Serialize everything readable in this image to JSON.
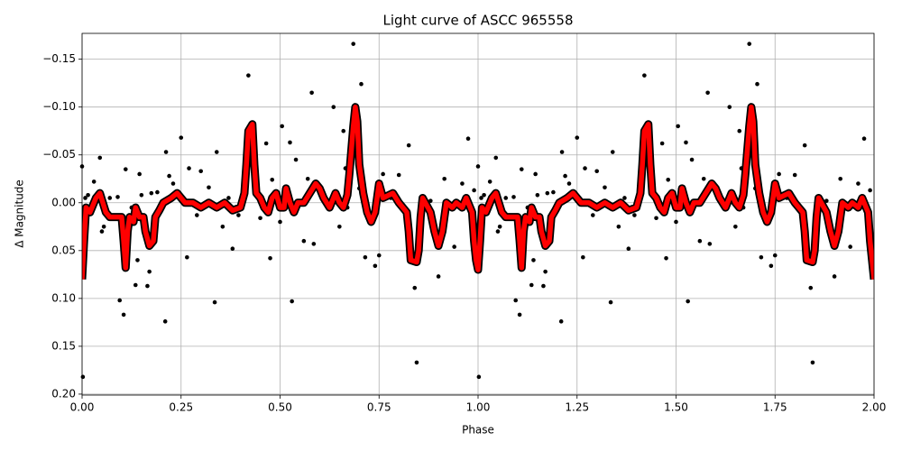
{
  "chart_data": {
    "type": "scatter",
    "title": "Light curve of ASCC 965558",
    "x_label": "Phase",
    "y_label": "Δ Magnitude",
    "xlim": [
      0,
      2
    ],
    "ylim": [
      -0.177,
      0.201
    ],
    "invert_y": true,
    "grid": true,
    "xticks": [
      {
        "value": 0,
        "label": "0.00"
      },
      {
        "value": 0.25,
        "label": "0.25"
      },
      {
        "value": 0.5,
        "label": "0.50"
      },
      {
        "value": 0.75,
        "label": "0.75"
      },
      {
        "value": 1,
        "label": "1.00"
      },
      {
        "value": 1.25,
        "label": "1.25"
      },
      {
        "value": 1.5,
        "label": "1.50"
      },
      {
        "value": 1.75,
        "label": "1.75"
      },
      {
        "value": 2,
        "label": "2.00"
      }
    ],
    "yticks": [
      {
        "value": -0.15,
        "label": "−0.15"
      },
      {
        "value": -0.1,
        "label": "−0.10"
      },
      {
        "value": -0.05,
        "label": "−0.05"
      },
      {
        "value": 0,
        "label": "0.00"
      },
      {
        "value": 0.05,
        "label": "0.05"
      },
      {
        "value": 0.1,
        "label": "0.10"
      },
      {
        "value": 0.15,
        "label": "0.15"
      },
      {
        "value": 0.2,
        "label": "0.20"
      }
    ],
    "series": [
      {
        "kind": "scatter",
        "color": "black",
        "x": [
          0.0,
          0.002,
          0.008,
          0.015,
          0.025,
          0.03,
          0.045,
          0.05,
          0.055,
          0.07,
          0.08,
          0.09,
          0.095,
          0.105,
          0.11,
          0.125,
          0.135,
          0.14,
          0.145,
          0.15,
          0.165,
          0.17,
          0.175,
          0.19,
          0.21,
          0.212,
          0.22,
          0.23,
          0.25,
          0.265,
          0.27,
          0.29,
          0.3,
          0.32,
          0.335,
          0.34,
          0.355,
          0.37,
          0.38,
          0.395,
          0.41,
          0.42,
          0.44,
          0.45,
          0.465,
          0.475,
          0.48,
          0.5,
          0.505,
          0.525,
          0.53,
          0.54,
          0.56,
          0.57,
          0.58,
          0.585,
          0.6,
          0.62,
          0.635,
          0.65,
          0.66,
          0.665,
          0.67,
          0.685,
          0.7,
          0.705,
          0.715,
          0.74,
          0.75,
          0.76,
          0.78,
          0.8,
          0.825,
          0.84,
          0.845,
          0.86,
          0.88,
          0.9,
          0.915,
          0.94,
          0.96,
          0.975,
          0.99,
          1.0,
          1.002,
          1.008,
          1.015,
          1.025,
          1.03,
          1.045,
          1.05,
          1.055,
          1.07,
          1.08,
          1.09,
          1.095,
          1.105,
          1.11,
          1.125,
          1.135,
          1.14,
          1.145,
          1.15,
          1.165,
          1.17,
          1.175,
          1.19,
          1.21,
          1.212,
          1.22,
          1.23,
          1.25,
          1.265,
          1.27,
          1.29,
          1.3,
          1.32,
          1.335,
          1.34,
          1.355,
          1.37,
          1.38,
          1.395,
          1.41,
          1.42,
          1.44,
          1.45,
          1.465,
          1.475,
          1.48,
          1.5,
          1.505,
          1.525,
          1.53,
          1.54,
          1.56,
          1.57,
          1.58,
          1.585,
          1.6,
          1.62,
          1.635,
          1.65,
          1.66,
          1.665,
          1.67,
          1.685,
          1.7,
          1.705,
          1.715,
          1.74,
          1.75,
          1.76,
          1.78,
          1.8,
          1.825,
          1.84,
          1.845,
          1.86,
          1.88,
          1.9,
          1.915,
          1.94,
          1.96,
          1.975,
          1.99
        ],
        "values": [
          -0.038,
          0.182,
          -0.005,
          -0.008,
          0.0,
          -0.022,
          -0.047,
          0.03,
          0.025,
          -0.005,
          0.015,
          -0.006,
          0.102,
          0.117,
          -0.035,
          0.005,
          0.086,
          0.06,
          -0.03,
          -0.008,
          0.087,
          0.072,
          -0.01,
          -0.011,
          0.124,
          -0.053,
          -0.028,
          -0.02,
          -0.068,
          0.057,
          -0.036,
          0.013,
          -0.033,
          -0.016,
          0.104,
          -0.053,
          0.025,
          -0.005,
          0.048,
          0.013,
          -0.016,
          -0.133,
          -0.035,
          0.016,
          -0.062,
          0.058,
          -0.024,
          0.02,
          -0.08,
          -0.063,
          0.103,
          -0.045,
          0.04,
          -0.025,
          -0.115,
          0.043,
          -0.018,
          0.005,
          -0.1,
          0.025,
          -0.075,
          -0.036,
          0.005,
          -0.166,
          -0.015,
          -0.124,
          0.057,
          0.066,
          0.055,
          -0.03,
          -0.005,
          -0.029,
          -0.06,
          0.089,
          0.167,
          0.005,
          -0.002,
          0.077,
          -0.025,
          0.046,
          -0.02,
          -0.067,
          -0.013,
          -0.038,
          0.182,
          -0.005,
          -0.008,
          0.0,
          -0.022,
          -0.047,
          0.03,
          0.025,
          -0.005,
          0.015,
          -0.006,
          0.102,
          0.117,
          -0.035,
          0.005,
          0.086,
          0.06,
          -0.03,
          -0.008,
          0.087,
          0.072,
          -0.01,
          -0.011,
          0.124,
          -0.053,
          -0.028,
          -0.02,
          -0.068,
          0.057,
          -0.036,
          0.013,
          -0.033,
          -0.016,
          0.104,
          -0.053,
          0.025,
          -0.005,
          0.048,
          0.013,
          -0.016,
          -0.133,
          -0.035,
          0.016,
          -0.062,
          0.058,
          -0.024,
          0.02,
          -0.08,
          -0.063,
          0.103,
          -0.045,
          0.04,
          -0.025,
          -0.115,
          0.043,
          -0.018,
          0.005,
          -0.1,
          0.025,
          -0.075,
          -0.036,
          0.005,
          -0.166,
          -0.015,
          -0.124,
          0.057,
          0.066,
          0.055,
          -0.03,
          -0.005,
          -0.029,
          -0.06,
          0.089,
          0.167,
          0.005,
          -0.002,
          0.077,
          -0.025,
          0.046,
          -0.02,
          -0.067,
          -0.013
        ]
      },
      {
        "kind": "line",
        "color": "red",
        "edge_color": "black",
        "x": [
          0.0,
          0.005,
          0.01,
          0.02,
          0.035,
          0.045,
          0.06,
          0.07,
          0.09,
          0.1,
          0.105,
          0.11,
          0.115,
          0.12,
          0.13,
          0.135,
          0.145,
          0.155,
          0.16,
          0.17,
          0.18,
          0.185,
          0.195,
          0.205,
          0.225,
          0.24,
          0.26,
          0.28,
          0.3,
          0.32,
          0.34,
          0.36,
          0.38,
          0.4,
          0.41,
          0.415,
          0.42,
          0.43,
          0.435,
          0.44,
          0.45,
          0.46,
          0.47,
          0.48,
          0.49,
          0.5,
          0.51,
          0.515,
          0.525,
          0.535,
          0.545,
          0.56,
          0.575,
          0.59,
          0.6,
          0.61,
          0.625,
          0.64,
          0.65,
          0.66,
          0.67,
          0.675,
          0.685,
          0.69,
          0.695,
          0.7,
          0.71,
          0.72,
          0.73,
          0.74,
          0.75,
          0.76,
          0.785,
          0.8,
          0.82,
          0.825,
          0.83,
          0.845,
          0.85,
          0.855,
          0.86,
          0.88,
          0.89,
          0.9,
          0.91,
          0.92,
          0.935,
          0.945,
          0.96,
          0.97,
          0.985,
          0.99,
          0.995,
          1.0,
          1.005,
          1.01,
          1.02,
          1.035,
          1.045,
          1.06,
          1.07,
          1.09,
          1.1,
          1.105,
          1.11,
          1.115,
          1.12,
          1.13,
          1.135,
          1.145,
          1.155,
          1.16,
          1.17,
          1.18,
          1.185,
          1.195,
          1.205,
          1.225,
          1.24,
          1.26,
          1.28,
          1.3,
          1.32,
          1.34,
          1.36,
          1.38,
          1.4,
          1.41,
          1.415,
          1.42,
          1.43,
          1.435,
          1.44,
          1.45,
          1.46,
          1.47,
          1.48,
          1.49,
          1.5,
          1.51,
          1.515,
          1.525,
          1.535,
          1.545,
          1.56,
          1.575,
          1.59,
          1.6,
          1.61,
          1.625,
          1.64,
          1.65,
          1.66,
          1.67,
          1.675,
          1.685,
          1.69,
          1.695,
          1.7,
          1.71,
          1.72,
          1.73,
          1.74,
          1.75,
          1.76,
          1.785,
          1.8,
          1.82,
          1.825,
          1.83,
          1.845,
          1.85,
          1.855,
          1.86,
          1.88,
          1.89,
          1.9,
          1.91,
          1.92,
          1.935,
          1.945,
          1.96,
          1.97,
          1.985,
          1.99,
          1.995,
          2.0
        ],
        "values": [
          0.08,
          0.04,
          0.005,
          0.01,
          -0.005,
          -0.01,
          0.01,
          0.015,
          0.015,
          0.015,
          0.04,
          0.068,
          0.03,
          0.015,
          0.02,
          0.005,
          0.015,
          0.015,
          0.03,
          0.045,
          0.04,
          0.015,
          0.008,
          0.0,
          -0.005,
          -0.01,
          0.0,
          0.0,
          0.005,
          0.0,
          0.005,
          0.0,
          0.008,
          0.005,
          -0.01,
          -0.04,
          -0.075,
          -0.082,
          -0.04,
          -0.01,
          -0.005,
          0.005,
          0.01,
          -0.005,
          -0.01,
          0.005,
          0.005,
          -0.015,
          0.0,
          0.01,
          0.0,
          0.0,
          -0.01,
          -0.02,
          -0.015,
          -0.005,
          0.005,
          -0.01,
          0.0,
          0.005,
          -0.008,
          -0.03,
          -0.08,
          -0.1,
          -0.085,
          -0.04,
          -0.01,
          0.01,
          0.02,
          0.01,
          -0.02,
          -0.005,
          -0.01,
          0.0,
          0.01,
          0.03,
          0.06,
          0.062,
          0.05,
          0.015,
          -0.005,
          0.01,
          0.03,
          0.045,
          0.03,
          0.0,
          0.005,
          0.0,
          0.005,
          -0.005,
          0.01,
          0.04,
          0.06,
          0.07,
          0.04,
          0.005,
          0.01,
          -0.005,
          -0.01,
          0.01,
          0.015,
          0.015,
          0.015,
          0.04,
          0.068,
          0.03,
          0.015,
          0.02,
          0.005,
          0.015,
          0.015,
          0.03,
          0.045,
          0.04,
          0.015,
          0.008,
          0.0,
          -0.005,
          -0.01,
          0.0,
          0.0,
          0.005,
          0.0,
          0.005,
          0.0,
          0.008,
          0.005,
          -0.01,
          -0.04,
          -0.075,
          -0.082,
          -0.04,
          -0.01,
          -0.005,
          0.005,
          0.01,
          -0.005,
          -0.01,
          0.005,
          0.005,
          -0.015,
          0.0,
          0.01,
          0.0,
          0.0,
          -0.01,
          -0.02,
          -0.015,
          -0.005,
          0.005,
          -0.01,
          0.0,
          0.005,
          -0.008,
          -0.03,
          -0.08,
          -0.1,
          -0.085,
          -0.04,
          -0.01,
          0.01,
          0.02,
          0.01,
          -0.02,
          -0.005,
          -0.01,
          0.0,
          0.01,
          0.03,
          0.06,
          0.062,
          0.05,
          0.015,
          -0.005,
          0.01,
          0.03,
          0.045,
          0.03,
          0.0,
          0.005,
          0.0,
          0.005,
          -0.005,
          0.01,
          0.04,
          0.06,
          0.08
        ]
      }
    ]
  }
}
